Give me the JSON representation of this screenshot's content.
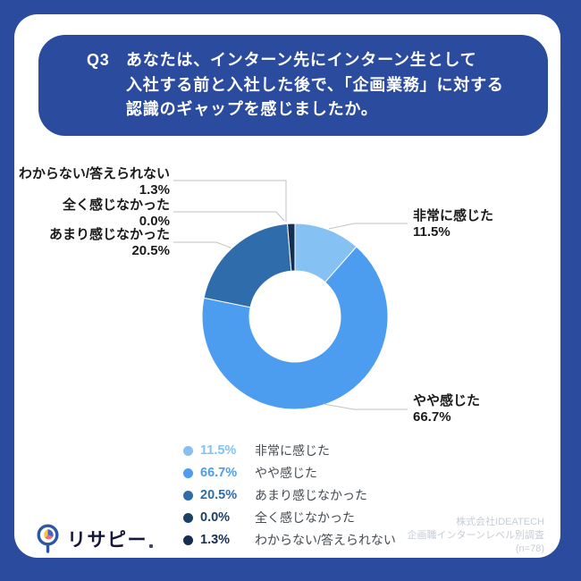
{
  "question": {
    "prefix": "Q3",
    "line1": "あなたは、インターン先にインターン生として",
    "line2": "入社する前と入社した後で、「企画業務」に対する",
    "line3": "認識のギャップを感じましたか。"
  },
  "chart_data": {
    "type": "pie",
    "subtype": "donut",
    "title": "Q3 あなたは、インターン先にインターン生として入社する前と入社した後で、「企画業務」に対する認識のギャップを感じましたか。",
    "categories": [
      "非常に感じた",
      "やや感じた",
      "あまり感じなかった",
      "全く感じなかった",
      "わからない/答えられない"
    ],
    "values": [
      11.5,
      66.7,
      20.5,
      0.0,
      1.3
    ],
    "unit": "%",
    "colors": [
      "#85C1F2",
      "#4C9DF0",
      "#2F6CAB",
      "#1C4166",
      "#142F52"
    ],
    "start_angle_deg": 0,
    "direction": "clockwise",
    "inner_radius_ratio": 0.49,
    "legend_position": "bottom-center",
    "n": 78
  },
  "callouts": [
    {
      "label": "非常に感じた",
      "value": "11.5%"
    },
    {
      "label": "やや感じた",
      "value": "66.7%"
    },
    {
      "label": "あまり感じなかった",
      "value": "20.5%"
    },
    {
      "label": "全く感じなかった",
      "value": "0.0%"
    },
    {
      "label": "わからない/答えられない",
      "value": "1.3%"
    }
  ],
  "legend": {
    "rows": [
      {
        "value": "11.5%",
        "label": "非常に感じた"
      },
      {
        "value": "66.7%",
        "label": "やや感じた"
      },
      {
        "value": "20.5%",
        "label": "あまり感じなかった"
      },
      {
        "value": "0.0%",
        "label": "全く感じなかった"
      },
      {
        "value": "1.3%",
        "label": "わからない/答えられない"
      }
    ]
  },
  "logo": {
    "text": "リサピー"
  },
  "attribution": {
    "line1": "株式会社IDEATECH",
    "line2": "企画職インターンレベル別調査",
    "line3": "(n=78)"
  },
  "colors": {
    "frame_blue": "#2B4B9E",
    "leader_line": "#C2C2C2",
    "label_text": "#1A1A1A",
    "attribution_text": "#C7CDD5"
  }
}
